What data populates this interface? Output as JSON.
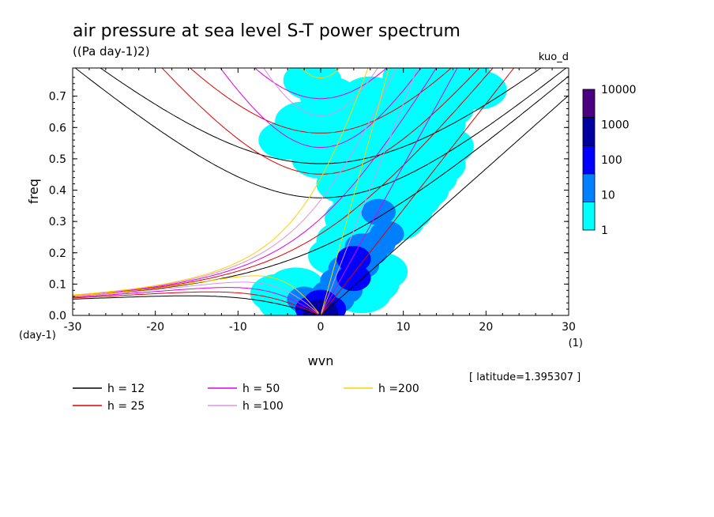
{
  "chart_data": {
    "type": "heatmap",
    "title": "air pressure at sea level S-T power spectrum",
    "subtitle": "((Pa day-1)2)",
    "label_right": "kuo_d",
    "xlabel": "wvn",
    "ylabel": "freq",
    "x_unit": "(1)",
    "y_unit": "(day-1)",
    "xlim": [
      -30,
      30
    ],
    "ylim": [
      0,
      0.79
    ],
    "x_ticks": [
      -30,
      -20,
      -10,
      0,
      10,
      20,
      30
    ],
    "x_tick_labels": [
      "-30",
      "-20",
      "-10",
      "0",
      "10",
      "20",
      "30"
    ],
    "y_ticks": [
      0,
      0.1,
      0.2,
      0.3,
      0.4,
      0.5,
      0.6,
      0.7
    ],
    "y_tick_labels": [
      "0.0",
      "0.1",
      "0.2",
      "0.3",
      "0.4",
      "0.5",
      "0.6",
      "0.7"
    ],
    "annotation": "[ latitude=1.395307 ]",
    "colorbar": {
      "levels": [
        "1",
        "10",
        "100",
        "1000",
        "10000"
      ],
      "colors": [
        "#00ffff",
        "#0080ff",
        "#0000ff",
        "#0000a0",
        "#4b0082"
      ],
      "scale": "log"
    },
    "dispersion_curves": [
      {
        "label": "h = 12",
        "h": 12,
        "color": "#000000"
      },
      {
        "label": "h = 25",
        "h": 25,
        "color": "#e00000"
      },
      {
        "label": "h = 50",
        "h": 50,
        "color": "#e000e0"
      },
      {
        "label": "h =100",
        "h": 100,
        "color": "#e090e0"
      },
      {
        "label": "h =200",
        "h": 200,
        "color": "#ffd000"
      }
    ],
    "power_cells": [
      {
        "x": 0.0,
        "y": 0.01,
        "level": 3
      },
      {
        "x": -1.0,
        "y": 0.02,
        "level": 2
      },
      {
        "x": 1.0,
        "y": 0.02,
        "level": 2
      },
      {
        "x": 0.0,
        "y": 0.04,
        "level": 2
      },
      {
        "x": -2.0,
        "y": 0.05,
        "level": 1
      },
      {
        "x": 2.0,
        "y": 0.05,
        "level": 1
      },
      {
        "x": -4.0,
        "y": 0.04,
        "level": 0
      },
      {
        "x": -5.0,
        "y": 0.07,
        "level": 0
      },
      {
        "x": -3.0,
        "y": 0.09,
        "level": 0
      },
      {
        "x": 1.0,
        "y": 0.07,
        "level": 1
      },
      {
        "x": 3.0,
        "y": 0.08,
        "level": 1
      },
      {
        "x": 5.0,
        "y": 0.07,
        "level": 0
      },
      {
        "x": 2.0,
        "y": 0.11,
        "level": 1
      },
      {
        "x": 4.0,
        "y": 0.12,
        "level": 2
      },
      {
        "x": 6.0,
        "y": 0.1,
        "level": 0
      },
      {
        "x": 3.0,
        "y": 0.15,
        "level": 1
      },
      {
        "x": 5.0,
        "y": 0.16,
        "level": 1
      },
      {
        "x": 7.0,
        "y": 0.14,
        "level": 0
      },
      {
        "x": 4.0,
        "y": 0.18,
        "level": 2
      },
      {
        "x": 6.0,
        "y": 0.2,
        "level": 1
      },
      {
        "x": 2.0,
        "y": 0.19,
        "level": 0
      },
      {
        "x": 5.0,
        "y": 0.22,
        "level": 1
      },
      {
        "x": 7.0,
        "y": 0.23,
        "level": 1
      },
      {
        "x": 3.0,
        "y": 0.24,
        "level": 0
      },
      {
        "x": 5.0,
        "y": 0.26,
        "level": 0
      },
      {
        "x": 8.0,
        "y": 0.26,
        "level": 1
      },
      {
        "x": 6.0,
        "y": 0.29,
        "level": 0
      },
      {
        "x": 9.0,
        "y": 0.3,
        "level": 0
      },
      {
        "x": 4.0,
        "y": 0.31,
        "level": 0
      },
      {
        "x": 7.0,
        "y": 0.33,
        "level": 1
      },
      {
        "x": 10.0,
        "y": 0.33,
        "level": 0
      },
      {
        "x": 5.0,
        "y": 0.36,
        "level": 0
      },
      {
        "x": 8.0,
        "y": 0.37,
        "level": 0
      },
      {
        "x": 11.0,
        "y": 0.37,
        "level": 0
      },
      {
        "x": 6.0,
        "y": 0.4,
        "level": 0
      },
      {
        "x": 9.0,
        "y": 0.41,
        "level": 0
      },
      {
        "x": 3.0,
        "y": 0.42,
        "level": 0
      },
      {
        "x": 12.0,
        "y": 0.4,
        "level": 0
      },
      {
        "x": 7.0,
        "y": 0.44,
        "level": 0
      },
      {
        "x": 10.0,
        "y": 0.45,
        "level": 0
      },
      {
        "x": 4.0,
        "y": 0.46,
        "level": 0
      },
      {
        "x": 13.0,
        "y": 0.44,
        "level": 0
      },
      {
        "x": 8.0,
        "y": 0.48,
        "level": 0
      },
      {
        "x": 11.0,
        "y": 0.49,
        "level": 0
      },
      {
        "x": 5.0,
        "y": 0.5,
        "level": 0
      },
      {
        "x": 14.0,
        "y": 0.48,
        "level": 0
      },
      {
        "x": 9.0,
        "y": 0.52,
        "level": 0
      },
      {
        "x": 12.0,
        "y": 0.53,
        "level": 0
      },
      {
        "x": 6.0,
        "y": 0.55,
        "level": 0
      },
      {
        "x": 10.0,
        "y": 0.56,
        "level": 0
      },
      {
        "x": 13.0,
        "y": 0.57,
        "level": 0
      },
      {
        "x": 7.0,
        "y": 0.59,
        "level": 0
      },
      {
        "x": 11.0,
        "y": 0.6,
        "level": 0
      },
      {
        "x": 14.0,
        "y": 0.61,
        "level": 0
      },
      {
        "x": 8.0,
        "y": 0.63,
        "level": 0
      },
      {
        "x": 12.0,
        "y": 0.64,
        "level": 0
      },
      {
        "x": 15.0,
        "y": 0.66,
        "level": 0
      },
      {
        "x": 9.0,
        "y": 0.67,
        "level": 0
      },
      {
        "x": 13.0,
        "y": 0.69,
        "level": 0
      },
      {
        "x": 10.0,
        "y": 0.71,
        "level": 0
      },
      {
        "x": 16.0,
        "y": 0.72,
        "level": 0
      },
      {
        "x": 14.0,
        "y": 0.74,
        "level": 0
      },
      {
        "x": 11.0,
        "y": 0.76,
        "level": 0
      },
      {
        "x": 17.0,
        "y": 0.77,
        "level": 0
      },
      {
        "x": 2.0,
        "y": 0.6,
        "level": 0
      },
      {
        "x": 0.0,
        "y": 0.5,
        "level": 0
      },
      {
        "x": -2.0,
        "y": 0.62,
        "level": 0
      },
      {
        "x": -4.0,
        "y": 0.56,
        "level": 0
      },
      {
        "x": 1.0,
        "y": 0.7,
        "level": 0
      },
      {
        "x": -1.0,
        "y": 0.75,
        "level": 0
      },
      {
        "x": 6.0,
        "y": 0.7,
        "level": 0
      },
      {
        "x": 4.0,
        "y": 0.64,
        "level": 0
      },
      {
        "x": 19.0,
        "y": 0.72,
        "level": 0
      },
      {
        "x": 15.0,
        "y": 0.54,
        "level": 0
      }
    ]
  },
  "colorbar_labels": [
    "10000",
    "1000",
    "100",
    "10",
    "1"
  ],
  "legend": [
    {
      "label": "h = 12",
      "color": "#000000"
    },
    {
      "label": "h = 25",
      "color": "#e00000"
    },
    {
      "label": "h = 50",
      "color": "#e000e0"
    },
    {
      "label": "h =100",
      "color": "#e090e0"
    },
    {
      "label": "h =200",
      "color": "#ffd000"
    }
  ]
}
